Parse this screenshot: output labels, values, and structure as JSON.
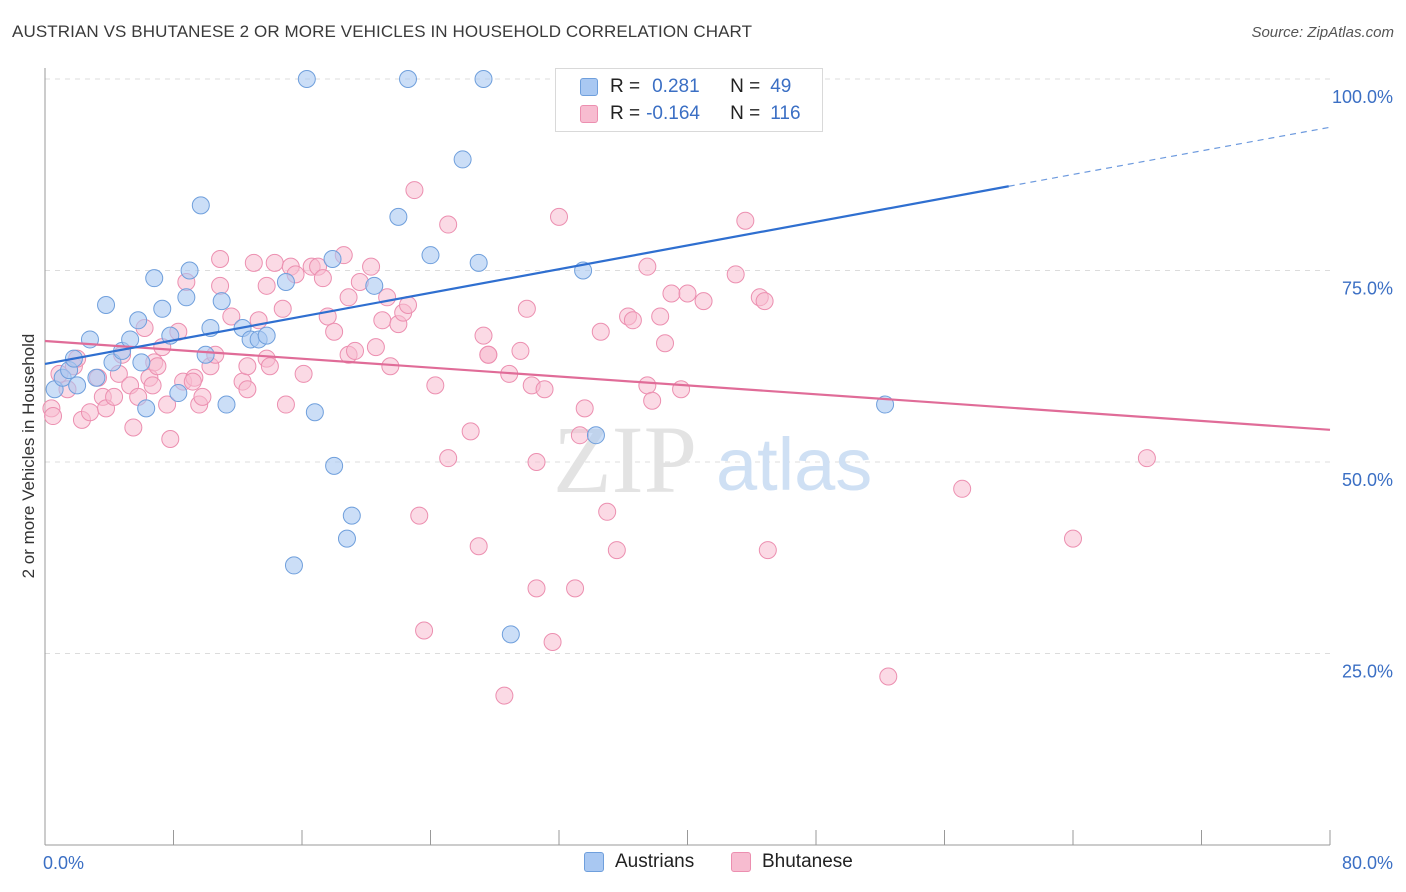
{
  "title": "AUSTRIAN VS BHUTANESE 2 OR MORE VEHICLES IN HOUSEHOLD CORRELATION CHART",
  "source": "Source: ZipAtlas.com",
  "watermark": {
    "zip": "ZIP",
    "atlas": "atlas"
  },
  "legend": {
    "rows": [
      {
        "r_label": "R =",
        "r_value": "0.281",
        "n_label": "N =",
        "n_value": "49"
      },
      {
        "r_label": "R =",
        "r_value": "-0.164",
        "n_label": "N =",
        "n_value": "116"
      }
    ]
  },
  "colors": {
    "austrians_fill": "#a9c8f2",
    "austrians_stroke": "#6f9fdc",
    "austrians_line": "#2f6fd0",
    "bhutanese_fill": "#f7bcd0",
    "bhutanese_stroke": "#ec8fb0",
    "bhutanese_line": "#e06c98",
    "tick_label": "#3b6fc4",
    "grid": "#dcdcdc"
  },
  "chart_data": {
    "type": "scatter",
    "title": "AUSTRIAN VS BHUTANESE 2 OR MORE VEHICLES IN HOUSEHOLD CORRELATION CHART",
    "xlabel": "",
    "ylabel": "2 or more Vehicles in Household",
    "xlim": [
      0,
      80
    ],
    "ylim": [
      0,
      102.5
    ],
    "x_tick_labels": [
      "0.0%",
      "80.0%"
    ],
    "y_ticks": [
      25,
      50,
      75,
      100
    ],
    "y_tick_labels": [
      "25.0%",
      "50.0%",
      "75.0%",
      "100.0%"
    ],
    "grid": true,
    "legend_position": "bottom-center",
    "series": [
      {
        "name": "Austrians",
        "points": [
          [
            0.6,
            59.5
          ],
          [
            1.1,
            61.0
          ],
          [
            1.5,
            62.0
          ],
          [
            2.0,
            60.0
          ],
          [
            1.8,
            63.5
          ],
          [
            2.8,
            66.0
          ],
          [
            3.2,
            61.0
          ],
          [
            3.8,
            70.5
          ],
          [
            4.2,
            63.0
          ],
          [
            4.8,
            64.5
          ],
          [
            5.3,
            66.0
          ],
          [
            5.8,
            68.5
          ],
          [
            6.3,
            57.0
          ],
          [
            6.8,
            74.0
          ],
          [
            7.3,
            70.0
          ],
          [
            7.8,
            66.5
          ],
          [
            8.3,
            59.0
          ],
          [
            8.8,
            71.5
          ],
          [
            9.0,
            75.0
          ],
          [
            9.7,
            83.5
          ],
          [
            10.3,
            67.5
          ],
          [
            11.0,
            71.0
          ],
          [
            11.3,
            57.5
          ],
          [
            12.3,
            67.5
          ],
          [
            12.8,
            66.0
          ],
          [
            13.3,
            66.0
          ],
          [
            13.8,
            66.5
          ],
          [
            15.0,
            73.5
          ],
          [
            15.5,
            36.5
          ],
          [
            16.3,
            100.0
          ],
          [
            16.8,
            56.5
          ],
          [
            17.9,
            76.5
          ],
          [
            18.0,
            49.5
          ],
          [
            18.8,
            40.0
          ],
          [
            19.1,
            43.0
          ],
          [
            20.5,
            73.0
          ],
          [
            22.0,
            82.0
          ],
          [
            22.6,
            100.0
          ],
          [
            24.0,
            77.0
          ],
          [
            26.0,
            89.5
          ],
          [
            27.0,
            76.0
          ],
          [
            27.3,
            100.0
          ],
          [
            29.0,
            27.5
          ],
          [
            33.5,
            75.0
          ],
          [
            34.3,
            53.5
          ],
          [
            52.3,
            57.5
          ],
          [
            34.6,
            100.0
          ],
          [
            10.0,
            64.0
          ],
          [
            6.0,
            63.0
          ]
        ],
        "trend": {
          "x0": 0,
          "y0": 62.8,
          "x1": 60,
          "y1": 86.0,
          "x_dash_end": 80,
          "y_dash_end": 93.7
        }
      },
      {
        "name": "Bhutanese",
        "points": [
          [
            0.4,
            57.0
          ],
          [
            0.5,
            56.0
          ],
          [
            0.9,
            61.5
          ],
          [
            1.4,
            59.5
          ],
          [
            1.8,
            62.5
          ],
          [
            2.0,
            63.5
          ],
          [
            2.3,
            55.5
          ],
          [
            2.8,
            56.5
          ],
          [
            3.3,
            61.0
          ],
          [
            3.6,
            58.5
          ],
          [
            3.8,
            57.0
          ],
          [
            4.3,
            58.5
          ],
          [
            4.6,
            61.5
          ],
          [
            4.8,
            64.0
          ],
          [
            5.3,
            60.0
          ],
          [
            5.5,
            54.5
          ],
          [
            5.8,
            58.5
          ],
          [
            6.2,
            67.5
          ],
          [
            6.5,
            61.0
          ],
          [
            6.7,
            60.0
          ],
          [
            6.8,
            63.0
          ],
          [
            7.0,
            62.5
          ],
          [
            7.3,
            65.0
          ],
          [
            7.6,
            57.5
          ],
          [
            7.8,
            53.0
          ],
          [
            8.3,
            67.0
          ],
          [
            8.6,
            60.5
          ],
          [
            8.8,
            73.5
          ],
          [
            9.3,
            61.0
          ],
          [
            9.6,
            57.5
          ],
          [
            9.8,
            58.5
          ],
          [
            10.3,
            62.5
          ],
          [
            10.6,
            64.0
          ],
          [
            10.9,
            76.5
          ],
          [
            10.9,
            73.0
          ],
          [
            11.6,
            69.0
          ],
          [
            12.3,
            60.5
          ],
          [
            12.6,
            59.5
          ],
          [
            12.6,
            62.5
          ],
          [
            13.0,
            76.0
          ],
          [
            13.3,
            68.5
          ],
          [
            13.8,
            73.0
          ],
          [
            13.8,
            63.5
          ],
          [
            14.0,
            62.5
          ],
          [
            14.3,
            76.0
          ],
          [
            14.8,
            70.0
          ],
          [
            15.3,
            75.5
          ],
          [
            15.6,
            74.5
          ],
          [
            16.1,
            61.5
          ],
          [
            16.6,
            75.5
          ],
          [
            17.0,
            75.5
          ],
          [
            17.3,
            74.0
          ],
          [
            17.6,
            69.0
          ],
          [
            18.0,
            67.0
          ],
          [
            18.6,
            77.0
          ],
          [
            18.9,
            71.5
          ],
          [
            18.9,
            64.0
          ],
          [
            19.3,
            64.5
          ],
          [
            19.6,
            73.5
          ],
          [
            20.3,
            75.5
          ],
          [
            20.6,
            65.0
          ],
          [
            21.0,
            68.5
          ],
          [
            21.3,
            71.5
          ],
          [
            22.0,
            68.0
          ],
          [
            22.3,
            69.5
          ],
          [
            22.6,
            70.5
          ],
          [
            23.0,
            85.5
          ],
          [
            23.3,
            43.0
          ],
          [
            23.6,
            28.0
          ],
          [
            24.3,
            60.0
          ],
          [
            25.1,
            81.0
          ],
          [
            25.1,
            50.5
          ],
          [
            27.0,
            39.0
          ],
          [
            27.3,
            66.5
          ],
          [
            27.6,
            64.0
          ],
          [
            27.6,
            64.0
          ],
          [
            28.6,
            19.5
          ],
          [
            28.9,
            61.5
          ],
          [
            29.6,
            64.5
          ],
          [
            30.3,
            60.0
          ],
          [
            30.6,
            50.0
          ],
          [
            30.6,
            33.5
          ],
          [
            31.1,
            59.5
          ],
          [
            31.6,
            26.5
          ],
          [
            32.0,
            82.0
          ],
          [
            33.0,
            33.5
          ],
          [
            33.3,
            53.5
          ],
          [
            33.6,
            57.0
          ],
          [
            34.6,
            67.0
          ],
          [
            35.0,
            43.5
          ],
          [
            35.6,
            38.5
          ],
          [
            36.3,
            69.0
          ],
          [
            36.6,
            68.5
          ],
          [
            37.5,
            60.0
          ],
          [
            37.5,
            75.5
          ],
          [
            37.8,
            58.0
          ],
          [
            38.3,
            69.0
          ],
          [
            38.6,
            65.5
          ],
          [
            39.0,
            72.0
          ],
          [
            39.6,
            59.5
          ],
          [
            40.0,
            72.0
          ],
          [
            41.0,
            71.0
          ],
          [
            43.0,
            74.5
          ],
          [
            43.6,
            81.5
          ],
          [
            44.5,
            71.5
          ],
          [
            44.8,
            71.0
          ],
          [
            45.0,
            38.5
          ],
          [
            52.5,
            22.0
          ],
          [
            57.1,
            46.5
          ],
          [
            64.0,
            40.0
          ],
          [
            68.6,
            50.5
          ],
          [
            9.2,
            60.5
          ],
          [
            15.0,
            57.5
          ],
          [
            21.5,
            62.5
          ],
          [
            30.0,
            70.0
          ],
          [
            26.5,
            54.0
          ]
        ],
        "trend": {
          "x0": 0,
          "y0": 65.8,
          "x1": 80,
          "y1": 54.2
        }
      }
    ]
  }
}
